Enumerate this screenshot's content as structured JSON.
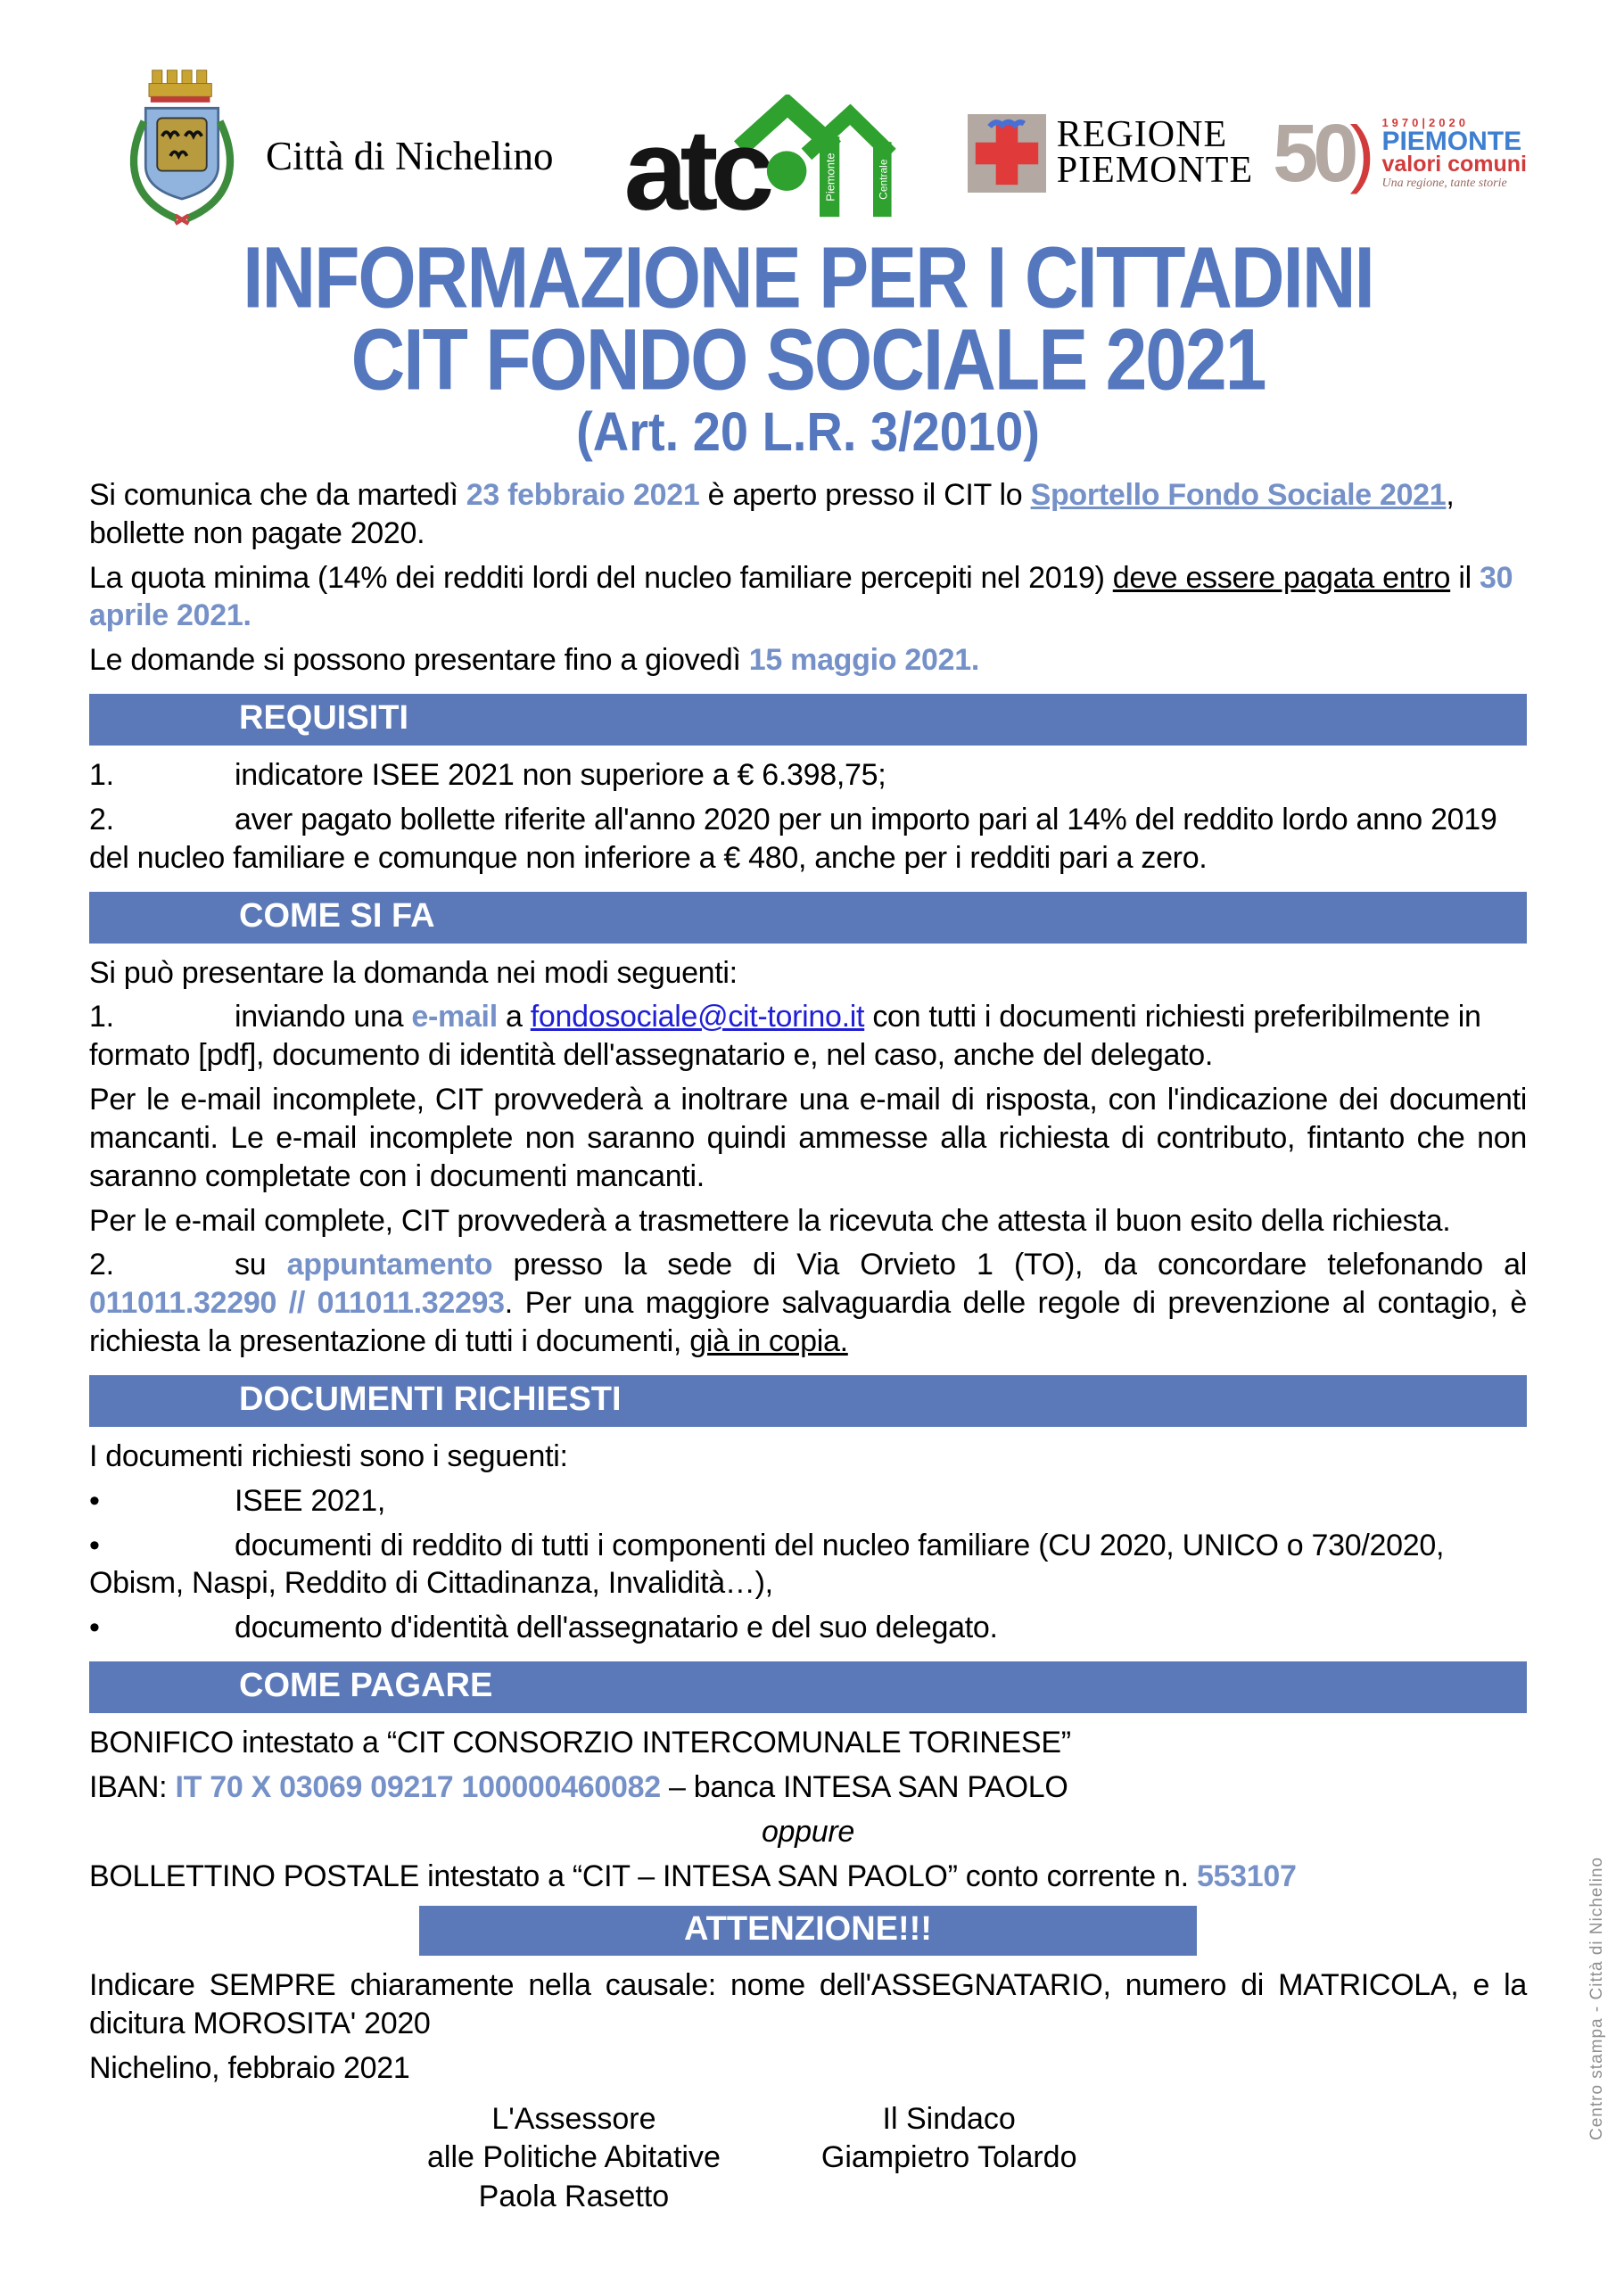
{
  "colors": {
    "accent": "#5577BE",
    "bar": "#5b79b8",
    "inline_blue": "#7591c8",
    "link": "#1f1fd6",
    "atc_green": "#2fa12f",
    "cross_red": "#e03a3a",
    "anniv_red": "#d23b3b",
    "anniv_blue": "#3f7fd0"
  },
  "header": {
    "nichelino_label": "Città di Nichelino",
    "atc": {
      "text": "atc",
      "sub1": "Piemonte",
      "sub2": "Centrale"
    },
    "regione": {
      "line1": "REGIONE",
      "line2": "PIEMONTE"
    },
    "anniversary": {
      "num": "50",
      "paren": ")",
      "years": "1970|2020",
      "brand": "PIEMONTE",
      "sub": "valori comuni",
      "tagline": "Una regione, tante storie"
    }
  },
  "title": {
    "line1": "INFORMAZIONE PER I CITTADINI",
    "line2": "CIT FONDO SOCIALE 2021",
    "line3": "(Art. 20 L.R. 3/2010)"
  },
  "intro": {
    "p1": [
      {
        "t": "Si comunica che da martedì ",
        "c": ""
      },
      {
        "t": "23 febbraio 2021",
        "c": "b"
      },
      {
        "t": " è aperto presso il CIT lo ",
        "c": ""
      },
      {
        "t": "Sportello Fondo Sociale 2021",
        "c": "bu"
      },
      {
        "t": ", bollette non pagate 2020.",
        "c": ""
      }
    ],
    "p2": [
      {
        "t": "La quota minima (14% dei redditi lordi del nucleo familiare percepiti nel 2019) ",
        "c": ""
      },
      {
        "t": "deve essere pagata entro",
        "c": "u"
      },
      {
        "t": " il ",
        "c": ""
      },
      {
        "t": "30 aprile 2021",
        "c": "b"
      },
      {
        "t": ".",
        "c": "b"
      }
    ],
    "p3": [
      {
        "t": "Le domande si possono presentare fino a giovedì ",
        "c": ""
      },
      {
        "t": "15 maggio 2021.",
        "c": "b"
      }
    ]
  },
  "sections": {
    "requisiti": {
      "heading": "REQUISITI",
      "i1": [
        {
          "t": "1.",
          "c": "n"
        },
        {
          "t": "indicatore ISEE 2021 non superiore a € 6.398,75;",
          "c": ""
        }
      ],
      "i2": [
        {
          "t": "2.",
          "c": "n"
        },
        {
          "t": "aver pagato bollette riferite all'anno 2020 per un importo pari al 14% del reddito lordo anno 2019 del nucleo familiare e comunque non inferiore a € 480, anche per i redditi pari a zero.",
          "c": ""
        }
      ]
    },
    "come_si_fa": {
      "heading": "COME SI FA",
      "p_intro": [
        {
          "t": "Si può presentare la domanda nei modi seguenti:",
          "c": ""
        }
      ],
      "p1": [
        {
          "t": "1.",
          "c": "n"
        },
        {
          "t": "inviando una ",
          "c": ""
        },
        {
          "t": "e-mail",
          "c": "b"
        },
        {
          "t": " a ",
          "c": ""
        },
        {
          "t": "fondosociale@cit-torino.it",
          "c": "l"
        },
        {
          "t": " con tutti i documenti richiesti preferibilmente in formato [pdf], documento di identità dell'assegnatario e, nel caso, anche del delegato.",
          "c": ""
        }
      ],
      "p2": [
        {
          "t": "Per le e-mail incomplete, CIT provvederà a inoltrare una e-mail di risposta, con l'indicazione dei documenti mancanti. Le e-mail incomplete non saranno quindi ammesse alla richiesta di contributo, fintanto che non saranno completate con i documenti mancanti.",
          "c": ""
        }
      ],
      "p3": [
        {
          "t": "Per le e-mail complete, CIT provvederà a trasmettere la ricevuta che attesta il buon esito della richiesta.",
          "c": ""
        }
      ],
      "p4": [
        {
          "t": "2.",
          "c": "n"
        },
        {
          "t": "su ",
          "c": ""
        },
        {
          "t": "appuntamento",
          "c": "b"
        },
        {
          "t": " presso la sede di Via Orvieto 1 (TO), da concordare telefonando al ",
          "c": ""
        },
        {
          "t": "011011.32290 // 011011.32293",
          "c": "b"
        },
        {
          "t": ". Per una maggiore salvaguardia delle regole di prevenzione al contagio, è richiesta la presentazione di tutti i documenti, ",
          "c": ""
        },
        {
          "t": "già in copia.",
          "c": "u"
        }
      ]
    },
    "documenti": {
      "heading": "DOCUMENTI RICHIESTI",
      "p_intro": [
        {
          "t": "I documenti richiesti sono i seguenti:",
          "c": ""
        }
      ],
      "b1": [
        {
          "t": "•",
          "c": "n"
        },
        {
          "t": "ISEE 2021,",
          "c": ""
        }
      ],
      "b2": [
        {
          "t": "•",
          "c": "n"
        },
        {
          "t": "documenti di reddito di tutti i componenti del nucleo familiare (CU 2020, UNICO o 730/2020, Obism, Naspi, Reddito di Cittadinanza, Invalidità…),",
          "c": ""
        }
      ],
      "b3": [
        {
          "t": "•",
          "c": "n"
        },
        {
          "t": "documento d'identità dell'assegnatario e del suo delegato.",
          "c": ""
        }
      ]
    },
    "come_pagare": {
      "heading": "COME PAGARE",
      "p1": [
        {
          "t": "BONIFICO intestato a “CIT CONSORZIO INTERCOMUNALE TORINESE”",
          "c": ""
        }
      ],
      "p2": [
        {
          "t": "IBAN: ",
          "c": ""
        },
        {
          "t": "IT 70 X 03069 09217 100000460082",
          "c": "b"
        },
        {
          "t": " – banca INTESA SAN PAOLO",
          "c": ""
        }
      ],
      "oppure": "oppure",
      "p3": [
        {
          "t": "BOLLETTINO POSTALE intestato a “CIT – INTESA SAN PAOLO” conto corrente n. ",
          "c": ""
        },
        {
          "t": "553107",
          "c": "b"
        }
      ]
    },
    "attenzione": {
      "heading": "ATTENZIONE!!!",
      "p1": [
        {
          "t": "Indicare SEMPRE chiaramente nella causale: nome dell'ASSEGNATARIO, numero di MATRICOLA, e la dicitura MOROSITA' 2020",
          "c": ""
        }
      ]
    }
  },
  "footer": {
    "date_line": "Nichelino, febbraio 2021",
    "left": [
      "L'Assessore",
      "alle Politiche Abitative",
      "Paola Rasetto"
    ],
    "right": [
      "Il Sindaco",
      "Giampietro Tolardo"
    ],
    "side_note": "Centro stampa - Città di Nichelino"
  }
}
